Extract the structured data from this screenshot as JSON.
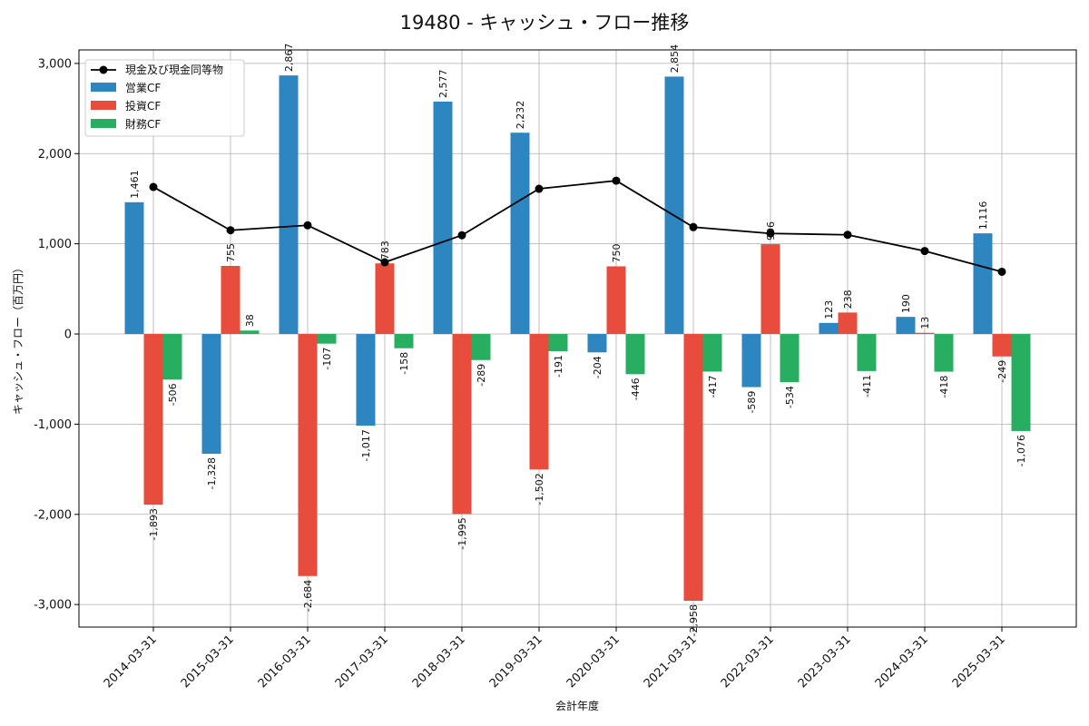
{
  "chart_data": {
    "type": "bar",
    "title": "19480 - キャッシュ・フロー推移",
    "xlabel": "会計年度",
    "ylabel": "キャッシュ・フロー（百万円）",
    "ylim": [
      -3250,
      3150
    ],
    "yticks": [
      -3000,
      -2000,
      -1000,
      0,
      1000,
      2000,
      3000
    ],
    "ytick_labels": [
      "-3,000",
      "-2,000",
      "-1,000",
      "0",
      "1,000",
      "2,000",
      "3,000"
    ],
    "grid": true,
    "legend_position": "top-left",
    "categories": [
      "2014-03-31",
      "2015-03-31",
      "2016-03-31",
      "2017-03-31",
      "2018-03-31",
      "2019-03-31",
      "2020-03-31",
      "2021-03-31",
      "2022-03-31",
      "2023-03-31",
      "2024-03-31",
      "2025-03-31"
    ],
    "line": {
      "name": "現金及び現金同等物",
      "color": "#000000",
      "values": [
        1630,
        1150,
        1205,
        795,
        1095,
        1610,
        1700,
        1185,
        1115,
        1100,
        920,
        690
      ]
    },
    "series": [
      {
        "name": "営業CF",
        "color": "#2e86c1",
        "values": [
          1461,
          -1328,
          2867,
          -1017,
          2577,
          2232,
          -204,
          2854,
          -589,
          123,
          190,
          1116
        ],
        "labels": [
          "1,461",
          "-1,328",
          "2,867",
          "-1,017",
          "2,577",
          "2,232",
          "-204",
          "2,854",
          "-589",
          "123",
          "190",
          "1,116"
        ]
      },
      {
        "name": "投資CF",
        "color": "#e74c3c",
        "values": [
          -1893,
          755,
          -2684,
          783,
          -1995,
          -1502,
          750,
          -2958,
          996,
          238,
          13,
          -249
        ],
        "labels": [
          "-1,893",
          "755",
          "-2,684",
          "783",
          "-1,995",
          "-1,502",
          "750",
          "-2,958",
          "996",
          "238",
          "13",
          "-249"
        ]
      },
      {
        "name": "財務CF",
        "color": "#27ae60",
        "values": [
          -506,
          38,
          -107,
          -158,
          -289,
          -191,
          -446,
          -417,
          -534,
          -411,
          -418,
          -1076
        ],
        "labels": [
          "-506",
          "38",
          "-107",
          "-158",
          "-289",
          "-191",
          "-446",
          "-417",
          "-534",
          "-411",
          "-418",
          "-1,076"
        ]
      }
    ]
  }
}
